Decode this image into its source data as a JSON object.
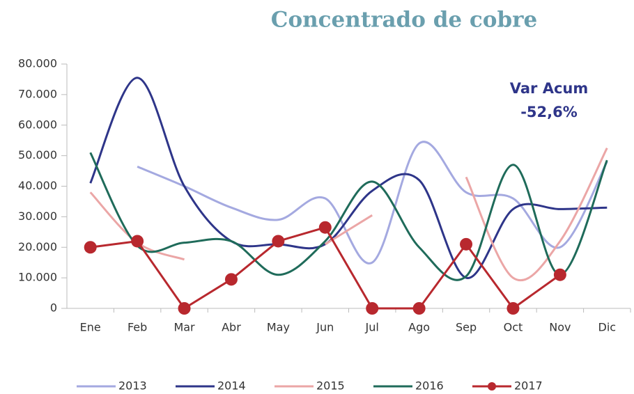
{
  "chart_data": {
    "type": "line",
    "title": "Concentrado de cobre",
    "annotations": [
      "Var Acum",
      "-52,6%"
    ],
    "categories": [
      "Ene",
      "Feb",
      "Mar",
      "Abr",
      "May",
      "Jun",
      "Jul",
      "Ago",
      "Sep",
      "Oct",
      "Nov",
      "Dic"
    ],
    "ylim": [
      0,
      80000
    ],
    "yticks": [
      0,
      {
        "value": 10000,
        "label": "10.000"
      },
      {
        "value": 20000,
        "label": "20.000"
      },
      {
        "value": 30000,
        "label": "30.000"
      },
      {
        "value": 40000,
        "label": "40.000"
      },
      {
        "value": 50000,
        "label": "50.000"
      },
      {
        "value": 60000,
        "label": "60.000"
      },
      {
        "value": 70000,
        "label": "70.000"
      },
      {
        "value": 80000,
        "label": "80.000"
      }
    ],
    "legend": "bottom",
    "series": [
      {
        "name": "2013",
        "color": "#a4a9e0",
        "smooth": true,
        "marker": false,
        "values": [
          null,
          46400,
          40000,
          33000,
          29000,
          36000,
          15000,
          54000,
          38000,
          36000,
          20000,
          48000
        ]
      },
      {
        "name": "2014",
        "color": "#2e3589",
        "smooth": true,
        "marker": false,
        "values": [
          41000,
          75500,
          40000,
          22000,
          21000,
          21000,
          38500,
          42000,
          10000,
          32500,
          32500,
          33000
        ]
      },
      {
        "name": "2015",
        "color": "#eba6a6",
        "smooth": true,
        "marker": false,
        "values": [
          38000,
          21500,
          16000,
          null,
          null,
          21000,
          30500,
          null,
          43000,
          10000,
          22000,
          52500
        ]
      },
      {
        "name": "2016",
        "color": "#1f6b5a",
        "smooth": true,
        "marker": false,
        "values": [
          51000,
          20500,
          21500,
          22000,
          11000,
          22000,
          41500,
          20000,
          10500,
          47000,
          11000,
          48500
        ]
      },
      {
        "name": "2017",
        "color": "#b8282e",
        "smooth": false,
        "marker": true,
        "values": [
          20000,
          22000,
          0,
          9500,
          22000,
          26500,
          0,
          0,
          21000,
          0,
          11000,
          null
        ]
      }
    ]
  }
}
